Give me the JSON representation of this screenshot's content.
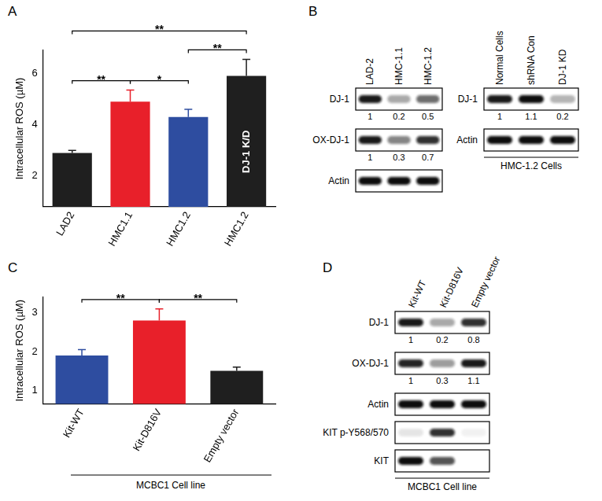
{
  "chart_data": [
    {
      "panel": "A",
      "type": "bar",
      "y_label": "Intracellular ROS (µM)",
      "categories": [
        "LAD2",
        "HMC1.1",
        "HMC1.2",
        "HMC1.2"
      ],
      "values": [
        2.9,
        4.9,
        4.3,
        5.9
      ],
      "errors": [
        0.1,
        0.45,
        0.3,
        0.65
      ],
      "colors": [
        "#1f1f1f",
        "#e8202a",
        "#2e4da0",
        "#1f1f1f"
      ],
      "annotations": [
        {
          "index": 3,
          "text": "DJ-1 K/D"
        }
      ],
      "significance": [
        {
          "from": 0,
          "to": 1,
          "label": "**"
        },
        {
          "from": 1,
          "to": 2,
          "label": "*"
        },
        {
          "from": 2,
          "to": 3,
          "label": "**"
        },
        {
          "from": 0,
          "to": 3,
          "label": "**"
        }
      ],
      "ylim": [
        0.8,
        6.9
      ],
      "yticks": [
        2,
        4,
        6
      ],
      "grid": false
    },
    {
      "panel": "C",
      "type": "bar",
      "y_label": "Intracellular ROS (µM)",
      "categories": [
        "Kit-WT",
        "Kit-D816V",
        "Empty vector"
      ],
      "values": [
        1.9,
        2.8,
        1.5
      ],
      "errors": [
        0.15,
        0.3,
        0.1
      ],
      "colors": [
        "#2e4da0",
        "#e8202a",
        "#1f1f1f"
      ],
      "significance": [
        {
          "from": 0,
          "to": 1,
          "label": "**"
        },
        {
          "from": 1,
          "to": 2,
          "label": "**"
        }
      ],
      "caption": "MCBC1 Cell line",
      "ylim": [
        0.65,
        3.4
      ],
      "yticks": [
        1,
        2,
        3
      ],
      "grid": false
    }
  ],
  "blots": [
    {
      "panel": "B",
      "groups": [
        {
          "columns": [
            "LAD-2",
            "HMC-1.1",
            "HMC-1.2"
          ],
          "rows": [
            {
              "label": "DJ-1",
              "bands": [
                0.95,
                0.35,
                0.6
              ],
              "quant": [
                1,
                0.2,
                0.5
              ]
            },
            {
              "label": "OX-DJ-1",
              "bands": [
                0.95,
                0.5,
                0.85
              ],
              "quant": [
                1,
                0.3,
                0.7
              ]
            },
            {
              "label": "Actin",
              "bands": [
                1,
                1,
                1
              ]
            }
          ]
        },
        {
          "columns": [
            "Normal Cells",
            "shRNA Con",
            "DJ-1 KD"
          ],
          "rows": [
            {
              "label": "DJ-1",
              "bands": [
                0.95,
                1,
                0.3
              ],
              "quant": [
                1,
                1.1,
                0.2
              ]
            },
            {
              "label": "Actin",
              "bands": [
                1,
                1,
                1
              ]
            }
          ],
          "caption": "HMC-1.2 Cells"
        }
      ]
    },
    {
      "panel": "D",
      "groups": [
        {
          "columns": [
            "Kit-WT",
            "Kit-D816V",
            "Empty vector"
          ],
          "rows": [
            {
              "label": "DJ-1",
              "bands": [
                0.95,
                0.35,
                0.85
              ],
              "quant": [
                1,
                0.2,
                0.8
              ]
            },
            {
              "label": "OX-DJ-1",
              "bands": [
                0.9,
                0.4,
                0.95
              ],
              "quant": [
                1,
                0.3,
                1.1
              ]
            },
            {
              "label": "Actin",
              "bands": [
                1,
                1,
                1
              ]
            },
            {
              "label": "KIT p-Y568/570",
              "bands": [
                0.1,
                0.85,
                0.05
              ]
            },
            {
              "label": "KIT",
              "bands": [
                1,
                0.7,
                0
              ]
            }
          ],
          "caption": "MCBC1 Cell line"
        }
      ]
    }
  ]
}
